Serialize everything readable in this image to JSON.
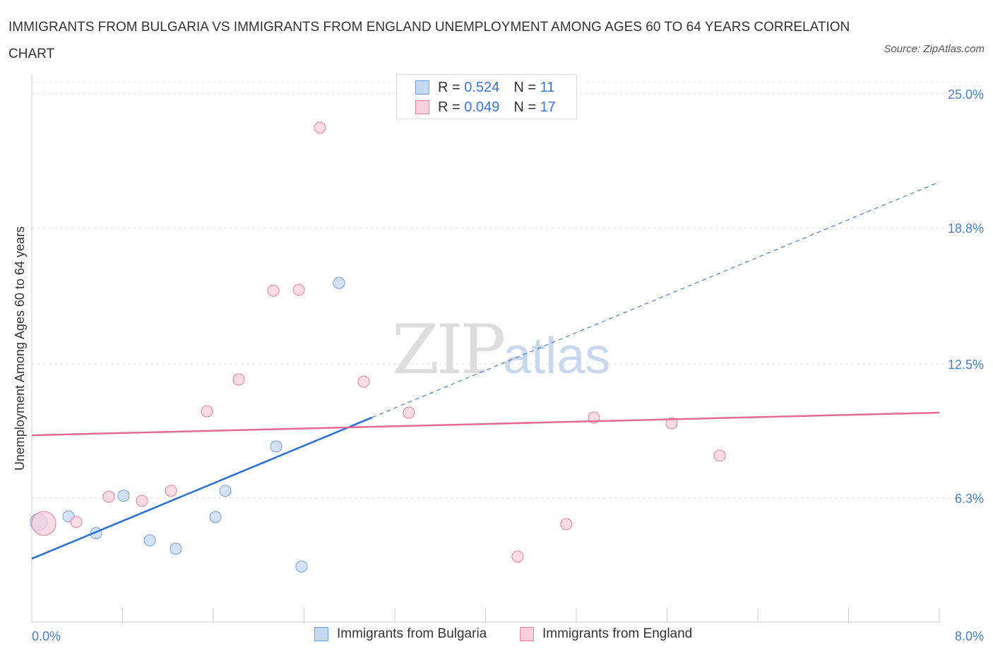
{
  "chart_data": {
    "type": "scatter",
    "title": "IMMIGRANTS FROM BULGARIA VS IMMIGRANTS FROM ENGLAND UNEMPLOYMENT AMONG AGES 60 TO 64 YEARS CORRELATION CHART",
    "source": "Source: ZipAtlas.com",
    "ylabel": "Unemployment Among Ages 60 to 64 years",
    "xlim": [
      0,
      8
    ],
    "ylim": [
      0,
      25
    ],
    "x_tick_labels": [
      "0.0%",
      "8.0%"
    ],
    "y_ticks": [
      25.0,
      18.8,
      12.5,
      6.3
    ],
    "y_tick_labels": [
      "25.0%",
      "18.8%",
      "12.5%",
      "6.3%"
    ],
    "legend": [
      {
        "r_label": "R =",
        "r": "0.524",
        "n_label": "N =",
        "n": "11"
      },
      {
        "r_label": "R =",
        "r": "0.049",
        "n_label": "N =",
        "n": "17"
      }
    ],
    "series": [
      {
        "name": "Immigrants from Bulgaria",
        "color": "#6f9fe0",
        "fill": "#c5d9f5",
        "trend_color": "#2a6fd6",
        "trend": [
          [
            0,
            3.49
          ],
          [
            8,
            20.92
          ]
        ],
        "trend_solid_until": 3.0,
        "points": [
          [
            0.062,
            5.19
          ],
          [
            0.324,
            5.45
          ],
          [
            0.567,
            4.67
          ],
          [
            0.809,
            6.4
          ],
          [
            1.04,
            4.34
          ],
          [
            1.27,
            3.95
          ],
          [
            1.619,
            5.42
          ],
          [
            1.706,
            6.63
          ],
          [
            2.154,
            8.68
          ],
          [
            2.378,
            3.13
          ],
          [
            2.708,
            16.25
          ]
        ]
      },
      {
        "name": "Immigrants from England",
        "color": "#e87fa0",
        "fill": "#f9cfdc",
        "trend_color": "#e36b93",
        "trend": [
          [
            0,
            9.2
          ],
          [
            8,
            10.25
          ]
        ],
        "trend_solid_until": 8,
        "points": [
          [
            0.106,
            5.12
          ],
          [
            0.392,
            5.19
          ],
          [
            0.679,
            6.36
          ],
          [
            0.971,
            6.17
          ],
          [
            1.227,
            6.63
          ],
          [
            1.544,
            10.31
          ],
          [
            1.824,
            11.78
          ],
          [
            2.129,
            15.89
          ],
          [
            2.354,
            15.93
          ],
          [
            2.54,
            23.43
          ],
          [
            2.926,
            11.68
          ],
          [
            3.324,
            10.25
          ],
          [
            4.283,
            3.59
          ],
          [
            4.712,
            5.09
          ],
          [
            4.955,
            10.02
          ],
          [
            5.64,
            9.76
          ],
          [
            6.064,
            8.26
          ]
        ]
      }
    ]
  },
  "watermark": {
    "zip": "ZIP",
    "atlas": "atlas"
  }
}
